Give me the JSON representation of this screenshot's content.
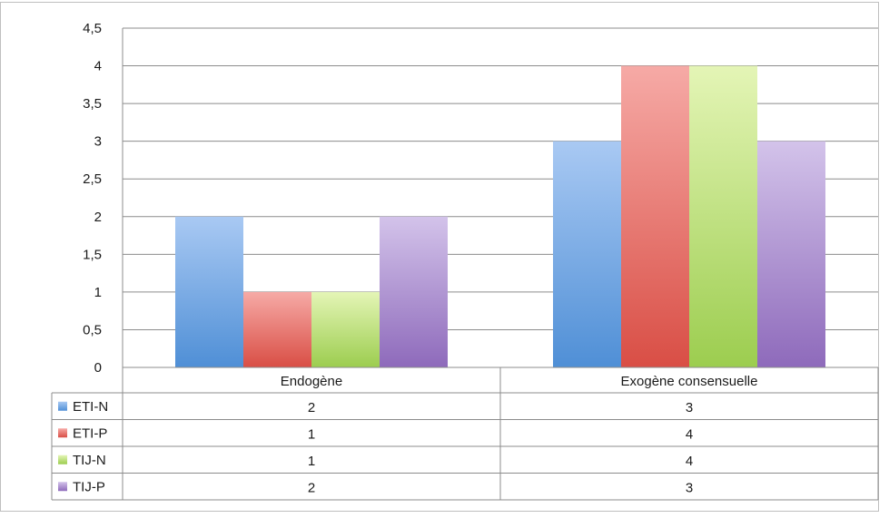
{
  "chart_data": {
    "type": "bar",
    "categories": [
      "Endogène",
      "Exogène consensuelle"
    ],
    "series": [
      {
        "name": "ETI-N",
        "values": [
          2,
          3
        ]
      },
      {
        "name": "ETI-P",
        "values": [
          1,
          4
        ]
      },
      {
        "name": "TIJ-N",
        "values": [
          1,
          4
        ]
      },
      {
        "name": "TIJ-P",
        "values": [
          2,
          3
        ]
      }
    ],
    "yticks": [
      "0",
      "0,5",
      "1",
      "1,5",
      "2",
      "2,5",
      "3",
      "3,5",
      "4",
      "4,5"
    ],
    "ylim": [
      0,
      4.5
    ],
    "grid": true,
    "legend": "data-table",
    "colors": {
      "ETI-N": [
        "#a9c9f3",
        "#4f8fd6"
      ],
      "ETI-P": [
        "#f6aaa6",
        "#d94e45"
      ],
      "TIJ-N": [
        "#e4f5b6",
        "#9ccd4f"
      ],
      "TIJ-P": [
        "#d3c3ea",
        "#8e6abb"
      ]
    }
  }
}
